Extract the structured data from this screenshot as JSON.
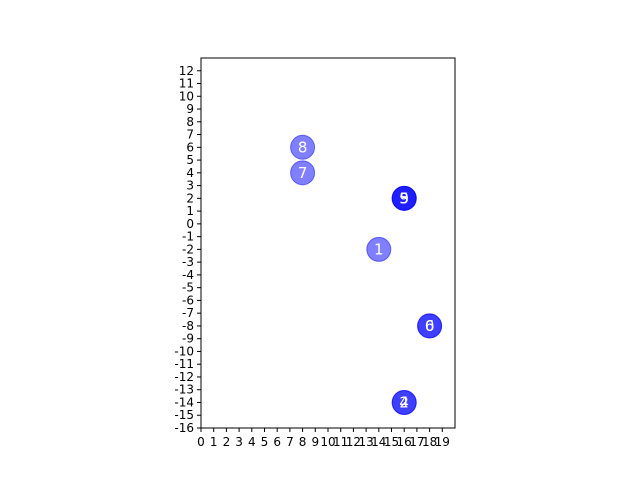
{
  "chart_data": {
    "type": "scatter",
    "title": "",
    "xlabel": "",
    "ylabel": "",
    "xlim": [
      0,
      20
    ],
    "ylim": [
      -16,
      13
    ],
    "x_ticks": [
      0,
      1,
      2,
      3,
      4,
      5,
      6,
      7,
      8,
      9,
      10,
      11,
      12,
      13,
      14,
      15,
      16,
      17,
      18,
      19
    ],
    "y_ticks": [
      -16,
      -15,
      -14,
      -13,
      -12,
      -11,
      -10,
      -9,
      -8,
      -7,
      -6,
      -5,
      -4,
      -3,
      -2,
      -1,
      0,
      1,
      2,
      3,
      4,
      5,
      6,
      7,
      8,
      9,
      10,
      11,
      12
    ],
    "grid": false,
    "marker_color": "#0000ff",
    "marker_alpha": 0.5,
    "label_color": "#ffffff",
    "points": [
      {
        "label": "1",
        "x": 14,
        "y": -2
      },
      {
        "label": "2",
        "x": 16,
        "y": -14
      },
      {
        "label": "3",
        "x": 16,
        "y": 2
      },
      {
        "label": "4",
        "x": 16,
        "y": -14
      },
      {
        "label": "5",
        "x": 16,
        "y": 2
      },
      {
        "label": "6",
        "x": 18,
        "y": -8
      },
      {
        "label": "7",
        "x": 8,
        "y": 4
      },
      {
        "label": "8",
        "x": 8,
        "y": 6
      },
      {
        "label": "9",
        "x": 16,
        "y": 2
      },
      {
        "label": "0",
        "x": 18,
        "y": -8
      }
    ]
  }
}
